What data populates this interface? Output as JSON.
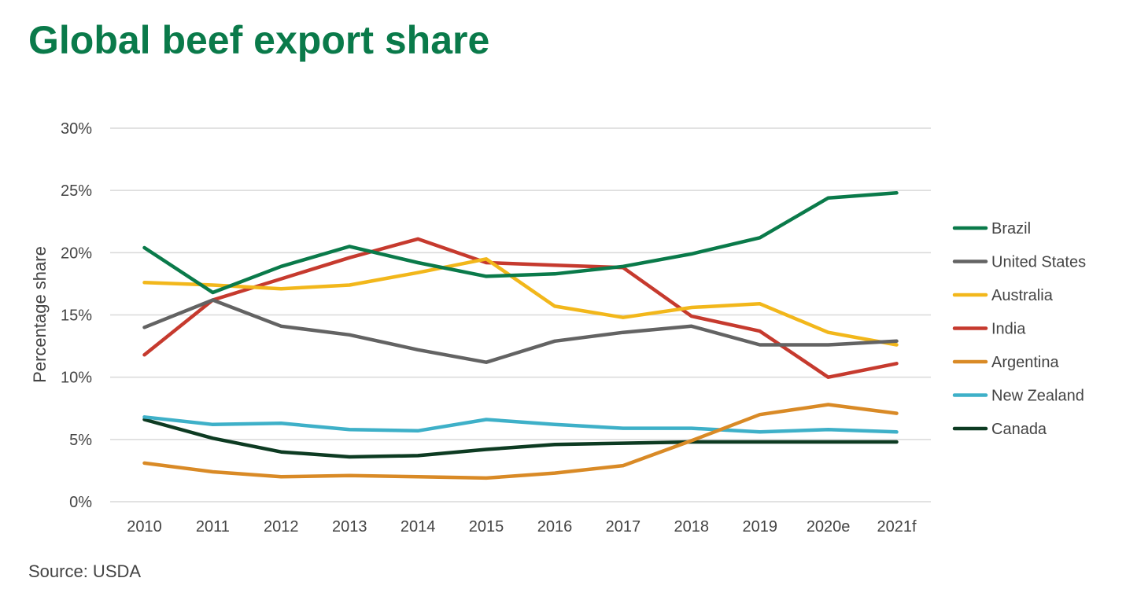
{
  "title": "Global beef export share",
  "source": "Source: USDA",
  "colors": {
    "title": "#0a7a4a",
    "grid": "#d9d9d9",
    "text": "#444444"
  },
  "chart_data": {
    "type": "line",
    "title": "Global beef export share",
    "xlabel": "",
    "ylabel": "Percentage share",
    "ylim": [
      0,
      30
    ],
    "y_ticks": [
      0,
      5,
      10,
      15,
      20,
      25,
      30
    ],
    "y_tick_labels": [
      "0%",
      "5%",
      "10%",
      "15%",
      "20%",
      "25%",
      "30%"
    ],
    "grid": true,
    "legend_position": "right",
    "categories": [
      "2010",
      "2011",
      "2012",
      "2013",
      "2014",
      "2015",
      "2016",
      "2017",
      "2018",
      "2019",
      "2020e",
      "2021f"
    ],
    "series": [
      {
        "name": "Brazil",
        "color": "#0a7a4a",
        "values": [
          20.4,
          16.8,
          18.9,
          20.5,
          19.2,
          18.1,
          18.3,
          18.9,
          19.9,
          21.2,
          24.4,
          24.8
        ]
      },
      {
        "name": "United States",
        "color": "#636363",
        "values": [
          14.0,
          16.2,
          14.1,
          13.4,
          12.2,
          11.2,
          12.9,
          13.6,
          14.1,
          12.6,
          12.6,
          12.9
        ]
      },
      {
        "name": "Australia",
        "color": "#f2b71b",
        "values": [
          17.6,
          17.4,
          17.1,
          17.4,
          18.4,
          19.5,
          15.7,
          14.8,
          15.6,
          15.9,
          13.6,
          12.6
        ]
      },
      {
        "name": "India",
        "color": "#c63a2e",
        "values": [
          11.8,
          16.2,
          17.9,
          19.6,
          21.1,
          19.2,
          19.0,
          18.8,
          14.9,
          13.7,
          10.0,
          11.1
        ]
      },
      {
        "name": "Argentina",
        "color": "#d98a26",
        "values": [
          3.1,
          2.4,
          2.0,
          2.1,
          2.0,
          1.9,
          2.3,
          2.9,
          4.9,
          7.0,
          7.8,
          7.1
        ]
      },
      {
        "name": "New Zealand",
        "color": "#3eb0c8",
        "values": [
          6.8,
          6.2,
          6.3,
          5.8,
          5.7,
          6.6,
          6.2,
          5.9,
          5.9,
          5.6,
          5.8,
          5.6
        ]
      },
      {
        "name": "Canada",
        "color": "#0d3b22",
        "values": [
          6.6,
          5.1,
          4.0,
          3.6,
          3.7,
          4.2,
          4.6,
          4.7,
          4.8,
          4.8,
          4.8,
          4.8
        ]
      }
    ]
  }
}
